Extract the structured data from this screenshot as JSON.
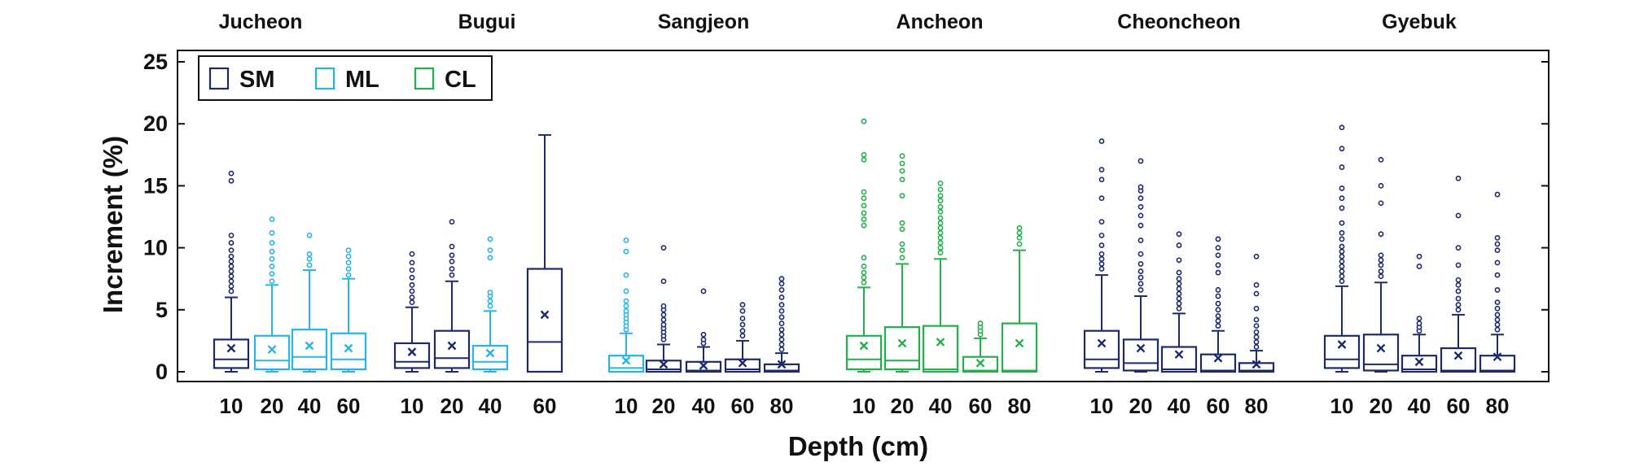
{
  "colors": {
    "SM": "#1b2a6b",
    "ML": "#29b3e6",
    "CL": "#22b04b",
    "axis": "#111111"
  },
  "chart_data": {
    "type": "boxplot",
    "xlabel": "Depth (cm)",
    "ylabel": "Increment (%)",
    "ylim": [
      -1,
      25.5
    ],
    "yticks": [
      0,
      5,
      10,
      15,
      20,
      25
    ],
    "legend": {
      "position": "top-left",
      "entries": [
        "SM",
        "ML",
        "CL"
      ]
    },
    "sites": [
      {
        "name": "Jucheon",
        "boxes": [
          {
            "depth": "10",
            "soil": "SM",
            "whislo": 0,
            "q1": 0.3,
            "med": 1.0,
            "q3": 2.6,
            "whishi": 6.0,
            "mean": 1.9,
            "fliers": [
              6.5,
              6.9,
              7.3,
              7.7,
              8.1,
              8.5,
              8.9,
              9.3,
              9.8,
              10.4,
              11.0,
              15.4,
              16.0
            ]
          },
          {
            "depth": "20",
            "soil": "ML",
            "whislo": 0,
            "q1": 0.2,
            "med": 0.9,
            "q3": 2.9,
            "whishi": 7.0,
            "mean": 1.8,
            "fliers": [
              7.3,
              7.9,
              8.5,
              9.1,
              9.7,
              10.4,
              11.2,
              12.3
            ]
          },
          {
            "depth": "40",
            "soil": "ML",
            "whislo": 0,
            "q1": 0.2,
            "med": 1.2,
            "q3": 3.4,
            "whishi": 8.2,
            "mean": 2.1,
            "fliers": [
              8.6,
              9.1,
              9.5,
              11.0
            ]
          },
          {
            "depth": "60",
            "soil": "ML",
            "whislo": 0,
            "q1": 0.2,
            "med": 1.0,
            "q3": 3.1,
            "whishi": 7.5,
            "mean": 1.9,
            "fliers": [
              7.8,
              8.3,
              8.8,
              9.3,
              9.8
            ]
          }
        ]
      },
      {
        "name": "Bugui",
        "boxes": [
          {
            "depth": "10",
            "soil": "SM",
            "whislo": 0,
            "q1": 0.3,
            "med": 0.8,
            "q3": 2.3,
            "whishi": 5.2,
            "mean": 1.6,
            "fliers": [
              5.6,
              6.0,
              6.5,
              7.0,
              7.6,
              8.2,
              8.8,
              9.5
            ]
          },
          {
            "depth": "20",
            "soil": "SM",
            "whislo": 0,
            "q1": 0.3,
            "med": 1.1,
            "q3": 3.3,
            "whishi": 7.3,
            "mean": 2.1,
            "fliers": [
              7.8,
              8.3,
              8.9,
              9.4,
              10.1,
              12.1
            ]
          },
          {
            "depth": "40",
            "soil": "ML",
            "whislo": 0,
            "q1": 0.2,
            "med": 0.8,
            "q3": 2.1,
            "whishi": 4.9,
            "mean": 1.5,
            "fliers": [
              5.3,
              5.7,
              6.1,
              6.4,
              9.2,
              9.8,
              10.7
            ]
          },
          {
            "depth": "60",
            "soil": "SM",
            "whislo": 0,
            "q1": 0.0,
            "med": 2.4,
            "q3": 8.3,
            "whishi": 19.1,
            "mean": 4.6,
            "fliers": []
          }
        ]
      },
      {
        "name": "Sangjeon",
        "boxes": [
          {
            "depth": "10",
            "soil": "ML",
            "whislo": 0,
            "q1": 0.0,
            "med": 0.3,
            "q3": 1.3,
            "whishi": 3.1,
            "mean": 0.9,
            "fliers": [
              3.4,
              3.7,
              4.0,
              4.3,
              4.6,
              4.9,
              5.3,
              5.7,
              6.5,
              7.8,
              9.7,
              10.6
            ]
          },
          {
            "depth": "20",
            "soil": "SM",
            "whislo": 0,
            "q1": 0.0,
            "med": 0.2,
            "q3": 0.9,
            "whishi": 2.2,
            "mean": 0.6,
            "fliers": [
              2.6,
              2.9,
              3.2,
              3.5,
              3.8,
              4.2,
              4.6,
              5.0,
              5.3,
              7.3,
              10.0
            ]
          },
          {
            "depth": "40",
            "soil": "SM",
            "whislo": 0,
            "q1": 0.0,
            "med": 0.1,
            "q3": 0.8,
            "whishi": 2.0,
            "mean": 0.5,
            "fliers": [
              2.3,
              2.6,
              3.0,
              6.5
            ]
          },
          {
            "depth": "60",
            "soil": "SM",
            "whislo": 0,
            "q1": 0.0,
            "med": 0.2,
            "q3": 1.0,
            "whishi": 2.5,
            "mean": 0.7,
            "fliers": [
              2.9,
              3.3,
              3.8,
              4.3,
              4.9,
              5.4
            ]
          },
          {
            "depth": "80",
            "soil": "SM",
            "whislo": 0,
            "q1": 0.0,
            "med": 0.1,
            "q3": 0.6,
            "whishi": 1.5,
            "mean": 0.6,
            "fliers": [
              1.8,
              2.2,
              2.6,
              3.0,
              3.4,
              3.9,
              4.4,
              4.9,
              5.4,
              6.0,
              6.6,
              7.1,
              7.5
            ]
          }
        ]
      },
      {
        "name": "Ancheon",
        "boxes": [
          {
            "depth": "10",
            "soil": "CL",
            "whislo": 0,
            "q1": 0.2,
            "med": 1.0,
            "q3": 2.9,
            "whishi": 6.8,
            "mean": 2.1,
            "fliers": [
              7.2,
              7.6,
              8.0,
              8.5,
              9.2,
              11.8,
              12.3,
              12.8,
              13.4,
              14.0,
              14.5,
              17.1,
              17.5,
              20.2
            ]
          },
          {
            "depth": "20",
            "soil": "CL",
            "whislo": 0,
            "q1": 0.2,
            "med": 0.9,
            "q3": 3.6,
            "whishi": 8.7,
            "mean": 2.3,
            "fliers": [
              9.2,
              9.8,
              10.3,
              11.5,
              12.0,
              14.2,
              15.5,
              16.2,
              16.8,
              17.4
            ]
          },
          {
            "depth": "40",
            "soil": "CL",
            "whislo": 0,
            "q1": 0.0,
            "med": 0.2,
            "q3": 3.7,
            "whishi": 9.1,
            "mean": 2.4,
            "fliers": [
              9.6,
              10.0,
              10.4,
              10.8,
              11.2,
              11.6,
              12.0,
              12.4,
              12.9,
              13.3,
              13.8,
              14.2,
              14.7,
              15.2
            ]
          },
          {
            "depth": "60",
            "soil": "CL",
            "whislo": 0,
            "q1": 0.0,
            "med": 0.1,
            "q3": 1.2,
            "whishi": 2.7,
            "mean": 0.7,
            "fliers": [
              3.0,
              3.3,
              3.6,
              3.9
            ]
          },
          {
            "depth": "80",
            "soil": "CL",
            "whislo": 0,
            "q1": 0.0,
            "med": 0.1,
            "q3": 3.9,
            "whishi": 9.8,
            "mean": 2.3,
            "fliers": [
              10.3,
              10.8,
              11.2,
              11.6
            ]
          }
        ]
      },
      {
        "name": "Cheoncheon",
        "boxes": [
          {
            "depth": "10",
            "soil": "SM",
            "whislo": 0,
            "q1": 0.3,
            "med": 1.0,
            "q3": 3.3,
            "whishi": 7.8,
            "mean": 2.3,
            "fliers": [
              8.3,
              8.7,
              9.1,
              9.5,
              10.2,
              11.0,
              12.1,
              14.0,
              15.5,
              16.3,
              18.6
            ]
          },
          {
            "depth": "20",
            "soil": "SM",
            "whislo": 0,
            "q1": 0.1,
            "med": 0.7,
            "q3": 2.6,
            "whishi": 6.1,
            "mean": 1.9,
            "fliers": [
              6.6,
              7.1,
              7.6,
              8.1,
              8.7,
              9.5,
              10.6,
              11.8,
              12.6,
              13.3,
              14.0,
              14.6,
              14.9,
              17.0
            ]
          },
          {
            "depth": "40",
            "soil": "SM",
            "whislo": 0,
            "q1": 0.0,
            "med": 0.2,
            "q3": 2.0,
            "whishi": 4.7,
            "mean": 1.4,
            "fliers": [
              5.1,
              5.5,
              5.9,
              6.3,
              6.7,
              7.1,
              7.5,
              8.0,
              9.0,
              10.2,
              11.1
            ]
          },
          {
            "depth": "60",
            "soil": "SM",
            "whislo": 0,
            "q1": 0.0,
            "med": 0.1,
            "q3": 1.4,
            "whishi": 3.3,
            "mean": 1.1,
            "fliers": [
              3.7,
              4.1,
              4.5,
              5.0,
              5.5,
              6.1,
              6.6,
              8.0,
              8.6,
              9.4,
              10.0,
              10.7
            ]
          },
          {
            "depth": "80",
            "soil": "SM",
            "whislo": 0,
            "q1": 0.0,
            "med": 0.1,
            "q3": 0.7,
            "whishi": 1.7,
            "mean": 0.6,
            "fliers": [
              2.0,
              2.4,
              2.8,
              3.2,
              3.7,
              4.2,
              5.1,
              6.3,
              7.0,
              9.3
            ]
          }
        ]
      },
      {
        "name": "Gyebuk",
        "boxes": [
          {
            "depth": "10",
            "soil": "SM",
            "whislo": 0,
            "q1": 0.3,
            "med": 1.0,
            "q3": 2.9,
            "whishi": 6.9,
            "mean": 2.2,
            "fliers": [
              7.3,
              7.7,
              8.1,
              8.5,
              8.9,
              9.3,
              9.7,
              10.1,
              10.7,
              11.2,
              12.0,
              13.2,
              14.0,
              14.8,
              16.5,
              18.0,
              19.7
            ]
          },
          {
            "depth": "20",
            "soil": "SM",
            "whislo": 0,
            "q1": 0.1,
            "med": 0.6,
            "q3": 3.0,
            "whishi": 7.2,
            "mean": 1.9,
            "fliers": [
              7.7,
              8.1,
              8.6,
              9.0,
              9.4,
              11.1,
              13.6,
              15.0,
              17.1
            ]
          },
          {
            "depth": "40",
            "soil": "SM",
            "whislo": 0,
            "q1": 0.0,
            "med": 0.2,
            "q3": 1.3,
            "whishi": 3.0,
            "mean": 0.8,
            "fliers": [
              3.3,
              3.6,
              3.9,
              4.3,
              8.5,
              9.3
            ]
          },
          {
            "depth": "60",
            "soil": "SM",
            "whislo": 0,
            "q1": 0.0,
            "med": 0.1,
            "q3": 1.9,
            "whishi": 4.6,
            "mean": 1.3,
            "fliers": [
              5.0,
              5.4,
              5.9,
              6.5,
              7.0,
              7.4,
              8.6,
              10.0,
              12.6,
              15.6
            ]
          },
          {
            "depth": "80",
            "soil": "SM",
            "whislo": 0,
            "q1": 0.0,
            "med": 0.1,
            "q3": 1.3,
            "whishi": 3.0,
            "mean": 1.2,
            "fliers": [
              3.4,
              3.8,
              4.2,
              4.6,
              5.1,
              5.6,
              6.6,
              7.8,
              8.8,
              9.8,
              10.3,
              10.8,
              14.3
            ]
          }
        ]
      }
    ]
  }
}
